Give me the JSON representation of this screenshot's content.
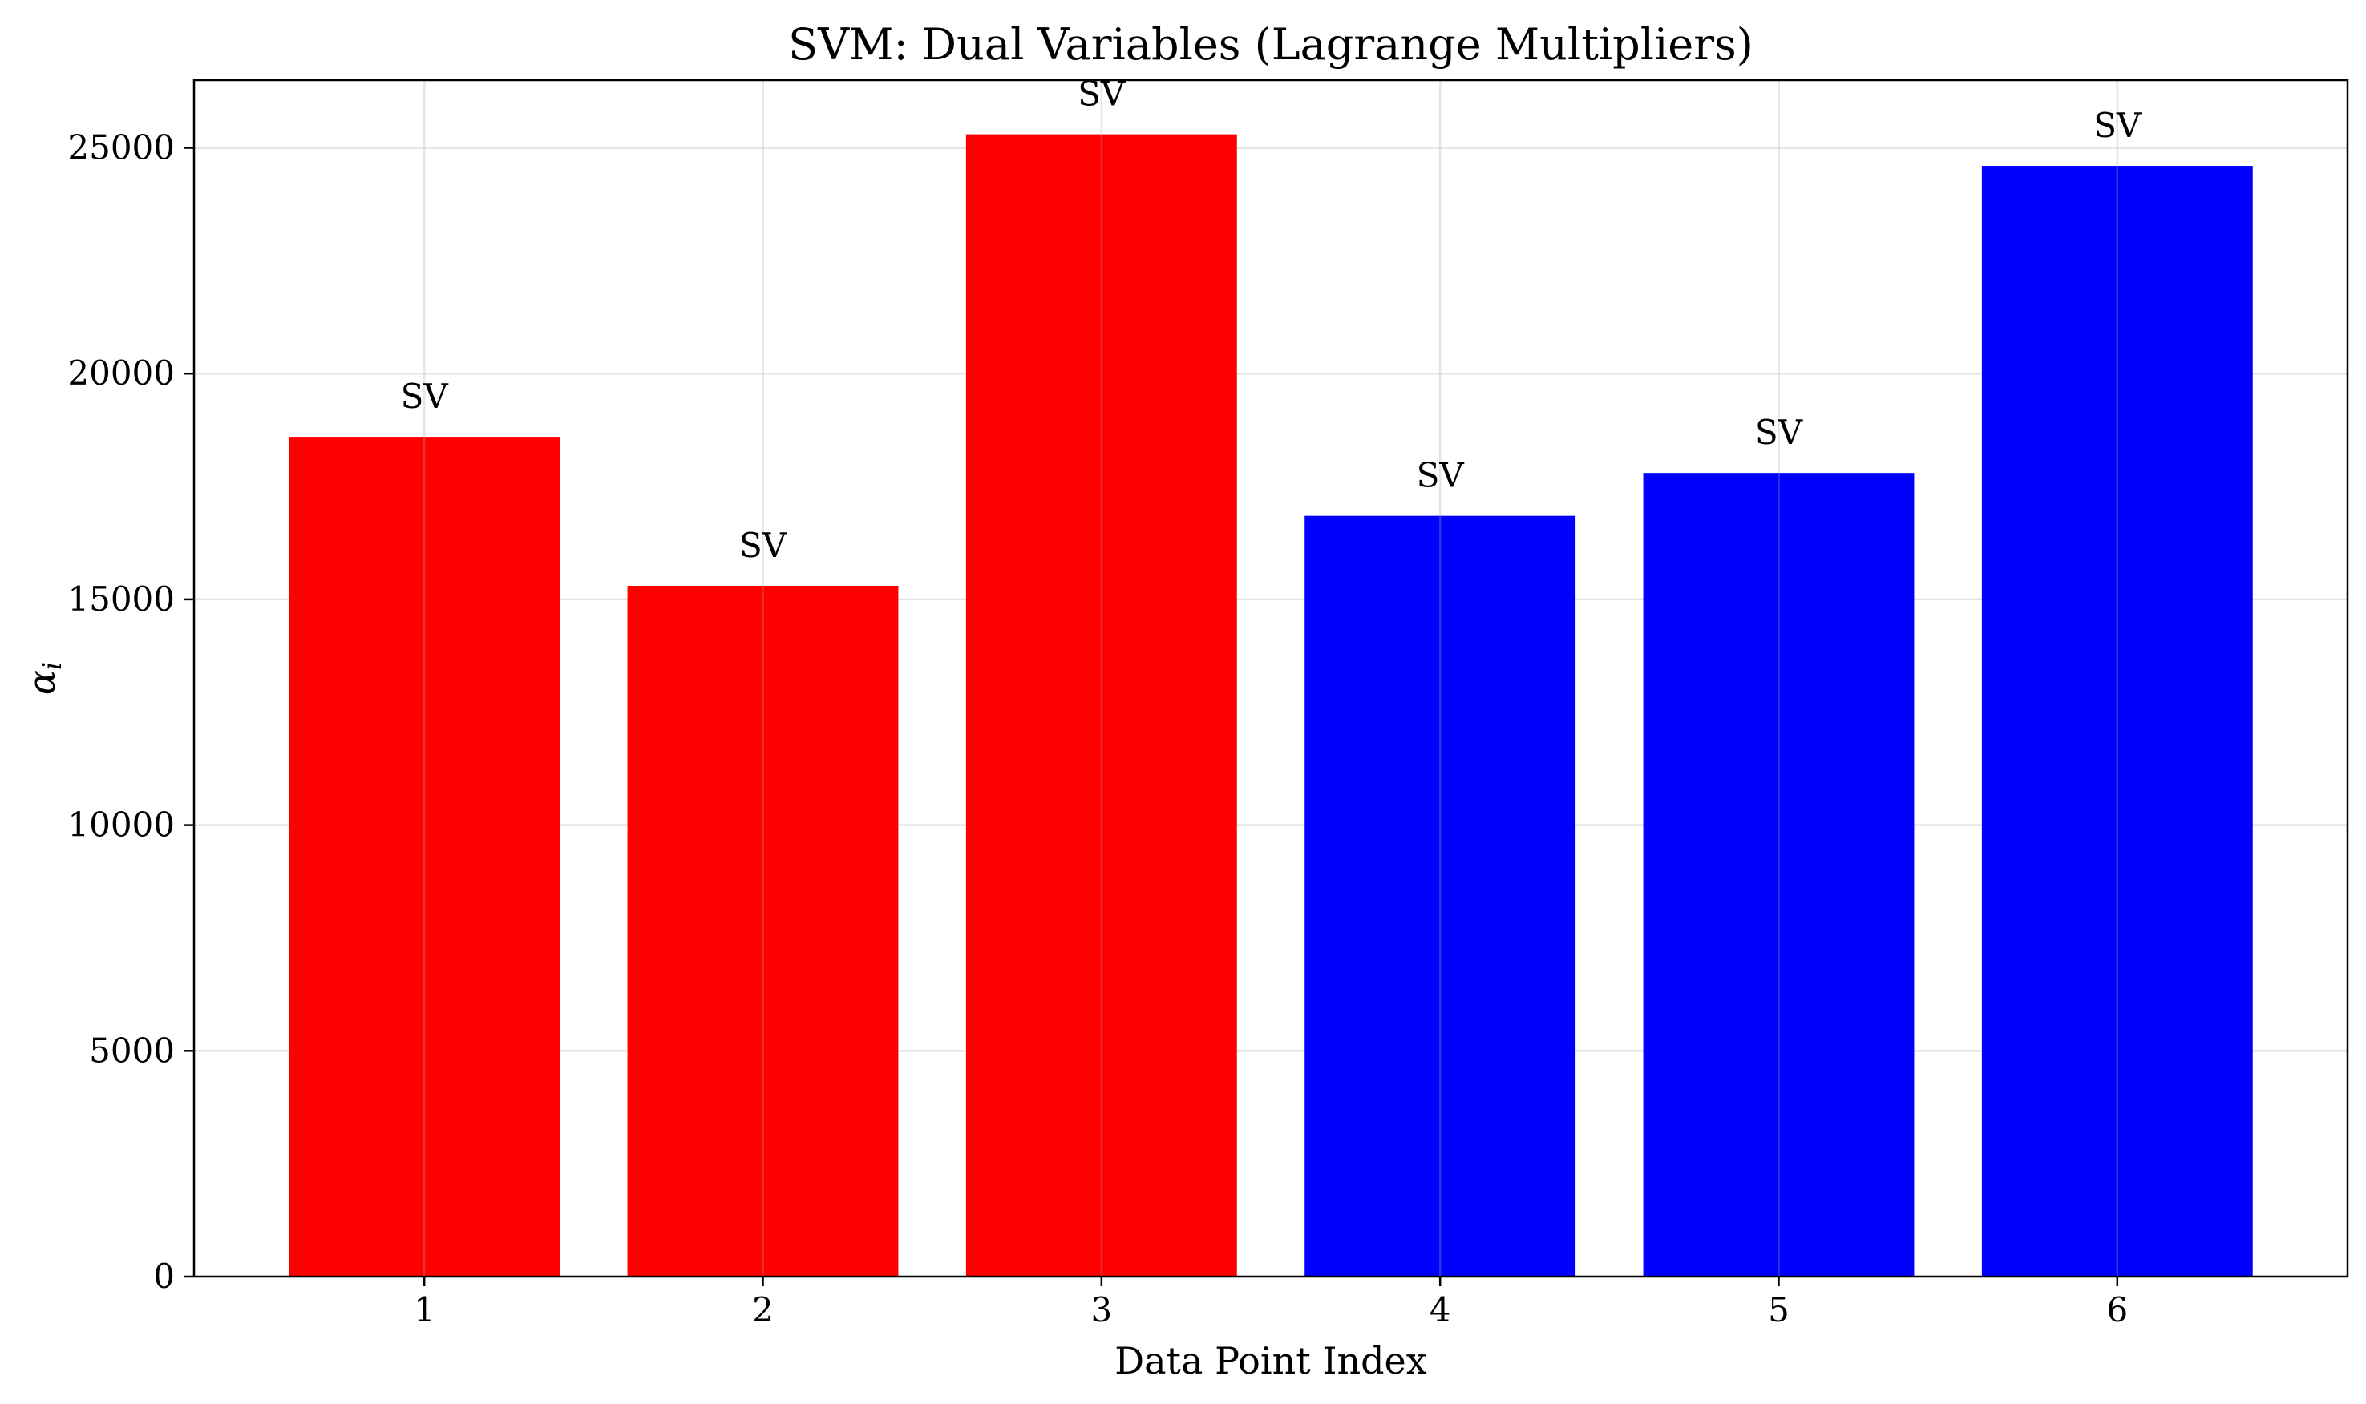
{
  "chart_data": {
    "type": "bar",
    "title": "SVM: Dual Variables (Lagrange Multipliers)",
    "xlabel": "Data Point Index",
    "ylabel": "α",
    "ylabel_subscript": "i",
    "categories": [
      "1",
      "2",
      "3",
      "4",
      "5",
      "6"
    ],
    "values": [
      18600,
      15300,
      25300,
      16850,
      17800,
      24600
    ],
    "bar_labels": [
      "SV",
      "SV",
      "SV",
      "SV",
      "SV",
      "SV"
    ],
    "colors": [
      "#ff0000",
      "#ff0000",
      "#ff0000",
      "#0000ff",
      "#0000ff",
      "#0000ff"
    ],
    "ylim": [
      0,
      26500
    ],
    "yticks": [
      0,
      5000,
      10000,
      15000,
      20000,
      25000
    ],
    "grid": true
  }
}
